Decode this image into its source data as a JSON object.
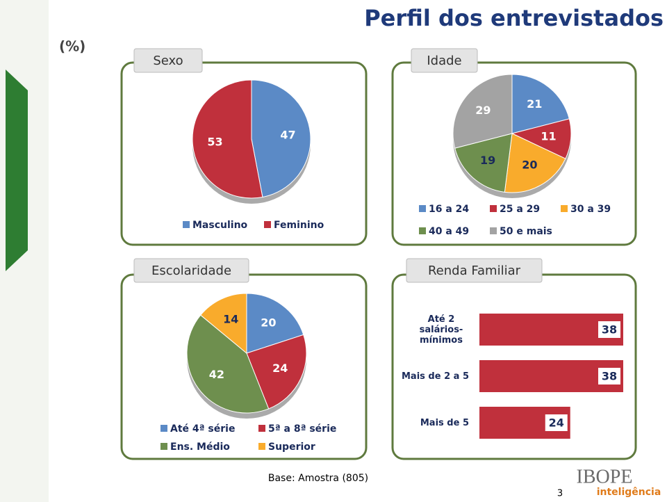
{
  "title": "Perfil dos entrevistados",
  "unit_note": "(%)",
  "footer": "Base: Amostra (805)",
  "page_number": "3",
  "logo": "IBOPE",
  "logo_sub": "inteligência",
  "chart_data": [
    {
      "type": "pie",
      "title": "Sexo",
      "categories": [
        "Masculino",
        "Feminino"
      ],
      "values": [
        47,
        53
      ],
      "colors": [
        "#5b8ac6",
        "#c0303c"
      ]
    },
    {
      "type": "pie",
      "title": "Idade",
      "categories": [
        "16 a 24",
        "25 a 29",
        "30 a 39",
        "40 a 49",
        "50 e mais"
      ],
      "values": [
        21,
        11,
        20,
        19,
        29
      ],
      "colors": [
        "#5b8ac6",
        "#c0303c",
        "#f9ab2c",
        "#6e8f4e",
        "#a3a3a3"
      ]
    },
    {
      "type": "pie",
      "title": "Escolaridade",
      "categories": [
        "Até 4ª série",
        "5ª a 8ª série",
        "Ens. Médio",
        "Superior"
      ],
      "values": [
        20,
        24,
        42,
        14
      ],
      "colors": [
        "#5b8ac6",
        "#c0303c",
        "#6e8f4e",
        "#f9ab2c"
      ]
    },
    {
      "type": "hbar",
      "title": "Renda Familiar",
      "categories": [
        "Até 2 salários-mínimos",
        "Mais de 2 a 5",
        "Mais de 5"
      ],
      "values": [
        38,
        38,
        24
      ],
      "color": "#c0303c"
    }
  ]
}
